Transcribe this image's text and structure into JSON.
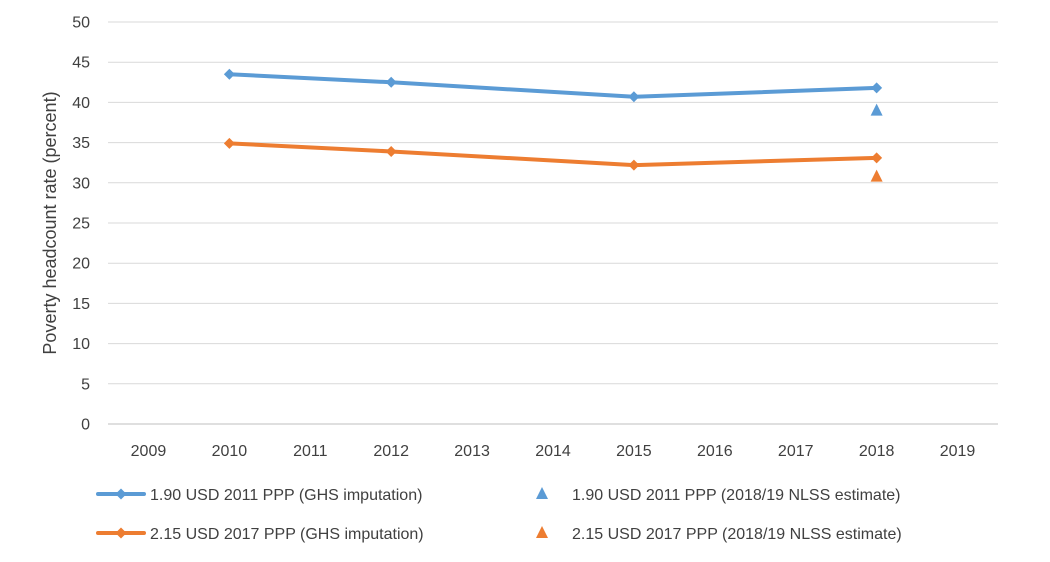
{
  "chart_data": {
    "type": "line",
    "title": "",
    "xlabel": "",
    "ylabel": "Poverty headcount rate (percent)",
    "x_ticks": [
      "2009",
      "2010",
      "2011",
      "2012",
      "2013",
      "2014",
      "2015",
      "2016",
      "2017",
      "2018",
      "2019"
    ],
    "xlim": [
      2009,
      2019
    ],
    "ylim": [
      0,
      50
    ],
    "y_ticks": [
      "0",
      "5",
      "10",
      "15",
      "20",
      "25",
      "30",
      "35",
      "40",
      "45",
      "50"
    ],
    "grid": "horizontal",
    "legend_position": "bottom",
    "series": [
      {
        "name": "1.90 USD 2011 PPP (GHS imputation)",
        "kind": "line",
        "marker": "diamond",
        "color": "#5b9bd5",
        "x": [
          2010,
          2012,
          2015,
          2018
        ],
        "y": [
          43.5,
          42.5,
          40.7,
          41.8
        ]
      },
      {
        "name": "2.15 USD 2017 PPP (GHS imputation)",
        "kind": "line",
        "marker": "diamond",
        "color": "#ed7d31",
        "x": [
          2010,
          2012,
          2015,
          2018
        ],
        "y": [
          34.9,
          33.9,
          32.2,
          33.1
        ]
      },
      {
        "name": "1.90 USD 2011 PPP (2018/19 NLSS estimate)",
        "kind": "point",
        "marker": "triangle",
        "color": "#5b9bd5",
        "x": [
          2018
        ],
        "y": [
          39.1
        ]
      },
      {
        "name": "2.15 USD 2017 PPP (2018/19 NLSS estimate)",
        "kind": "point",
        "marker": "triangle",
        "color": "#ed7d31",
        "x": [
          2018
        ],
        "y": [
          30.9
        ]
      }
    ]
  }
}
